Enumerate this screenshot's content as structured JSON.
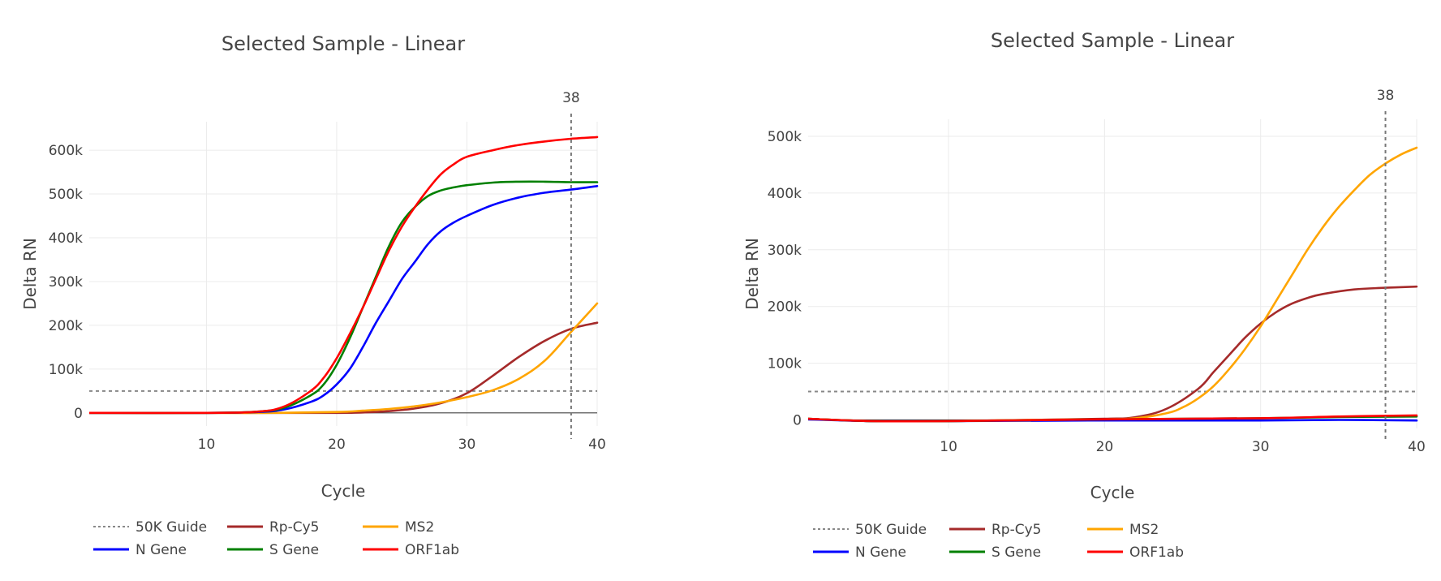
{
  "chart_data": [
    {
      "type": "line",
      "title": "Selected Sample - Linear",
      "xlabel": "Cycle",
      "ylabel": "Delta RN",
      "xlim": [
        1,
        40
      ],
      "ylim": [
        -30000,
        665000
      ],
      "xticks": [
        10,
        20,
        30,
        40
      ],
      "yticks": [
        0,
        100000,
        200000,
        300000,
        400000,
        500000,
        600000
      ],
      "ytick_labels": [
        "0",
        "100k",
        "200k",
        "300k",
        "400k",
        "500k",
        "600k"
      ],
      "grid": true,
      "legend_position": "bottom",
      "vline": {
        "x": 38,
        "label": "38"
      },
      "guide": {
        "name": "50K Guide",
        "y": 50000,
        "color": "#888888"
      },
      "series": [
        {
          "name": "Rp-Cy5",
          "color": "#a52a2a",
          "x": [
            1,
            10,
            15,
            20,
            22,
            24,
            26,
            28,
            30,
            32,
            34,
            36,
            38,
            40
          ],
          "y": [
            0,
            0,
            0,
            0,
            1000,
            4000,
            10000,
            22000,
            45000,
            85000,
            128000,
            165000,
            192000,
            206000
          ]
        },
        {
          "name": "MS2",
          "color": "#ffa500",
          "x": [
            1,
            10,
            15,
            20,
            22,
            24,
            26,
            28,
            30,
            32,
            34,
            36,
            38,
            40
          ],
          "y": [
            0,
            0,
            0,
            2000,
            5000,
            9000,
            15000,
            24000,
            36000,
            52000,
            78000,
            120000,
            185000,
            250000
          ]
        },
        {
          "name": "N Gene",
          "color": "#0000ff",
          "x": [
            1,
            10,
            14,
            16,
            18,
            19,
            20,
            21,
            22,
            23,
            24,
            25,
            26,
            27,
            28,
            29,
            30,
            32,
            34,
            36,
            38,
            40
          ],
          "y": [
            0,
            0,
            2000,
            8000,
            25000,
            40000,
            65000,
            100000,
            150000,
            205000,
            255000,
            305000,
            345000,
            385000,
            415000,
            435000,
            450000,
            475000,
            492000,
            503000,
            510000,
            518000
          ]
        },
        {
          "name": "S Gene",
          "color": "#008000",
          "x": [
            1,
            10,
            14,
            16,
            18,
            19,
            20,
            21,
            22,
            23,
            24,
            25,
            26,
            27,
            28,
            29,
            30,
            32,
            34,
            36,
            38,
            40
          ],
          "y": [
            0,
            0,
            3000,
            12000,
            40000,
            65000,
            110000,
            170000,
            240000,
            310000,
            380000,
            435000,
            470000,
            495000,
            508000,
            515000,
            520000,
            526000,
            528000,
            528000,
            527000,
            527000
          ]
        },
        {
          "name": "ORF1ab",
          "color": "#ff0000",
          "x": [
            1,
            10,
            14,
            16,
            18,
            19,
            20,
            21,
            22,
            23,
            24,
            25,
            26,
            27,
            28,
            29,
            30,
            32,
            34,
            36,
            38,
            40
          ],
          "y": [
            0,
            0,
            3000,
            15000,
            50000,
            80000,
            125000,
            180000,
            240000,
            305000,
            370000,
            425000,
            470000,
            510000,
            545000,
            568000,
            585000,
            600000,
            612000,
            620000,
            626000,
            630000
          ]
        }
      ]
    },
    {
      "type": "line",
      "title": "Selected Sample - Linear",
      "xlabel": "Cycle",
      "ylabel": "Delta RN",
      "xlim": [
        1,
        40
      ],
      "ylim": [
        -15000,
        530000
      ],
      "xticks": [
        10,
        20,
        30,
        40
      ],
      "yticks": [
        0,
        100000,
        200000,
        300000,
        400000,
        500000
      ],
      "ytick_labels": [
        "0",
        "100k",
        "200k",
        "300k",
        "400k",
        "500k"
      ],
      "grid": true,
      "legend_position": "bottom",
      "vline": {
        "x": 38,
        "label": "38"
      },
      "guide": {
        "name": "50K Guide",
        "y": 50000,
        "color": "#888888"
      },
      "series": [
        {
          "name": "Rp-Cy5",
          "color": "#a52a2a",
          "x": [
            1,
            5,
            10,
            15,
            20,
            22,
            24,
            26,
            27,
            28,
            29,
            30,
            31,
            32,
            33,
            34,
            36,
            38,
            40
          ],
          "y": [
            2000,
            -2000,
            -2000,
            0,
            2000,
            5000,
            20000,
            55000,
            85000,
            115000,
            145000,
            170000,
            190000,
            205000,
            215000,
            222000,
            230000,
            233000,
            235000
          ]
        },
        {
          "name": "MS2",
          "color": "#ffa500",
          "x": [
            1,
            5,
            10,
            15,
            20,
            22,
            24,
            25,
            26,
            27,
            28,
            29,
            30,
            31,
            32,
            33,
            34,
            35,
            36,
            37,
            38,
            39,
            40
          ],
          "y": [
            2000,
            -2000,
            -2000,
            0,
            1000,
            3000,
            12000,
            22000,
            38000,
            60000,
            90000,
            125000,
            165000,
            210000,
            255000,
            300000,
            340000,
            375000,
            405000,
            432000,
            452000,
            468000,
            480000
          ]
        },
        {
          "name": "N Gene",
          "color": "#0000ff",
          "x": [
            1,
            5,
            10,
            20,
            30,
            35,
            40
          ],
          "y": [
            1000,
            -2000,
            -2000,
            -1000,
            -1000,
            0,
            -1000
          ]
        },
        {
          "name": "S Gene",
          "color": "#008000",
          "x": [
            1,
            5,
            10,
            20,
            30,
            35,
            40
          ],
          "y": [
            2000,
            -2000,
            -2000,
            1000,
            3000,
            5000,
            6000
          ]
        },
        {
          "name": "ORF1ab",
          "color": "#ff0000",
          "x": [
            1,
            5,
            10,
            20,
            30,
            35,
            40
          ],
          "y": [
            2000,
            -2000,
            -2000,
            1000,
            3000,
            6000,
            8000
          ]
        }
      ]
    }
  ]
}
